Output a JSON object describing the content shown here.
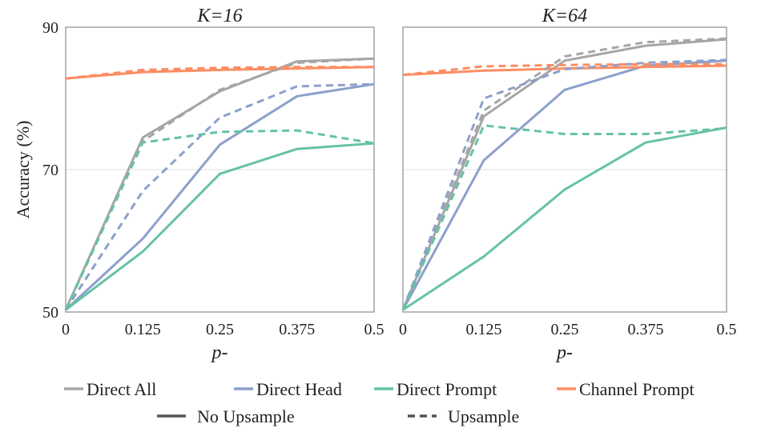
{
  "chart_data": {
    "type": "line",
    "ylabel": "Accuracy (%)",
    "xlabel": "p-",
    "y_ticks": [
      "50",
      "70",
      "90"
    ],
    "x_ticks": [
      "0",
      "0.125",
      "0.25",
      "0.375",
      "0.5"
    ],
    "x": [
      0,
      0.125,
      0.25,
      0.375,
      0.5
    ],
    "xlim": [
      0,
      0.5
    ],
    "ylim": [
      50,
      90
    ],
    "grid": "horizontal",
    "legend": {
      "placement": "bottom",
      "series_entries": [
        "Direct All",
        "Direct Head",
        "Direct Prompt",
        "Channel Prompt"
      ],
      "style_entries": [
        "No Upsample",
        "Upsample"
      ]
    },
    "colors": {
      "Direct All": "#a6a6a6",
      "Direct Head": "#8da0cb",
      "Direct Prompt": "#66c2a5",
      "Channel Prompt": "#fc8d62"
    },
    "panels": [
      {
        "title": "K=16",
        "series": [
          {
            "name": "Direct All",
            "style": "No Upsample",
            "values": [
              50.3,
              74.5,
              81.0,
              85.2,
              85.6
            ]
          },
          {
            "name": "Direct All",
            "style": "Upsample",
            "values": [
              50.3,
              74.0,
              81.2,
              85.0,
              85.6
            ]
          },
          {
            "name": "Direct Head",
            "style": "No Upsample",
            "values": [
              50.3,
              60.3,
              73.5,
              80.3,
              82.0
            ]
          },
          {
            "name": "Direct Head",
            "style": "Upsample",
            "values": [
              50.3,
              67.0,
              77.3,
              81.7,
              82.0
            ]
          },
          {
            "name": "Direct Prompt",
            "style": "No Upsample",
            "values": [
              50.3,
              58.5,
              69.4,
              72.9,
              73.7
            ]
          },
          {
            "name": "Direct Prompt",
            "style": "Upsample",
            "values": [
              50.3,
              73.8,
              75.3,
              75.5,
              73.7
            ]
          },
          {
            "name": "Channel Prompt",
            "style": "No Upsample",
            "values": [
              82.8,
              83.7,
              84.0,
              84.2,
              84.4
            ]
          },
          {
            "name": "Channel Prompt",
            "style": "Upsample",
            "values": [
              82.8,
              84.0,
              84.3,
              84.4,
              84.4
            ]
          }
        ]
      },
      {
        "title": "K=64",
        "series": [
          {
            "name": "Direct All",
            "style": "No Upsample",
            "values": [
              50.3,
              77.5,
              85.3,
              87.4,
              88.3
            ]
          },
          {
            "name": "Direct All",
            "style": "Upsample",
            "values": [
              50.3,
              78.3,
              85.9,
              87.9,
              88.4
            ]
          },
          {
            "name": "Direct Head",
            "style": "No Upsample",
            "values": [
              50.3,
              71.3,
              81.2,
              84.6,
              85.3
            ]
          },
          {
            "name": "Direct Head",
            "style": "Upsample",
            "values": [
              50.3,
              80.0,
              84.1,
              85.0,
              85.4
            ]
          },
          {
            "name": "Direct Prompt",
            "style": "No Upsample",
            "values": [
              50.3,
              57.8,
              67.2,
              73.8,
              75.9
            ]
          },
          {
            "name": "Direct Prompt",
            "style": "Upsample",
            "values": [
              50.3,
              76.2,
              75.0,
              75.0,
              75.8
            ]
          },
          {
            "name": "Channel Prompt",
            "style": "No Upsample",
            "values": [
              83.3,
              83.9,
              84.2,
              84.4,
              84.6
            ]
          },
          {
            "name": "Channel Prompt",
            "style": "Upsample",
            "values": [
              83.3,
              84.5,
              84.7,
              84.8,
              84.8
            ]
          }
        ]
      }
    ]
  }
}
